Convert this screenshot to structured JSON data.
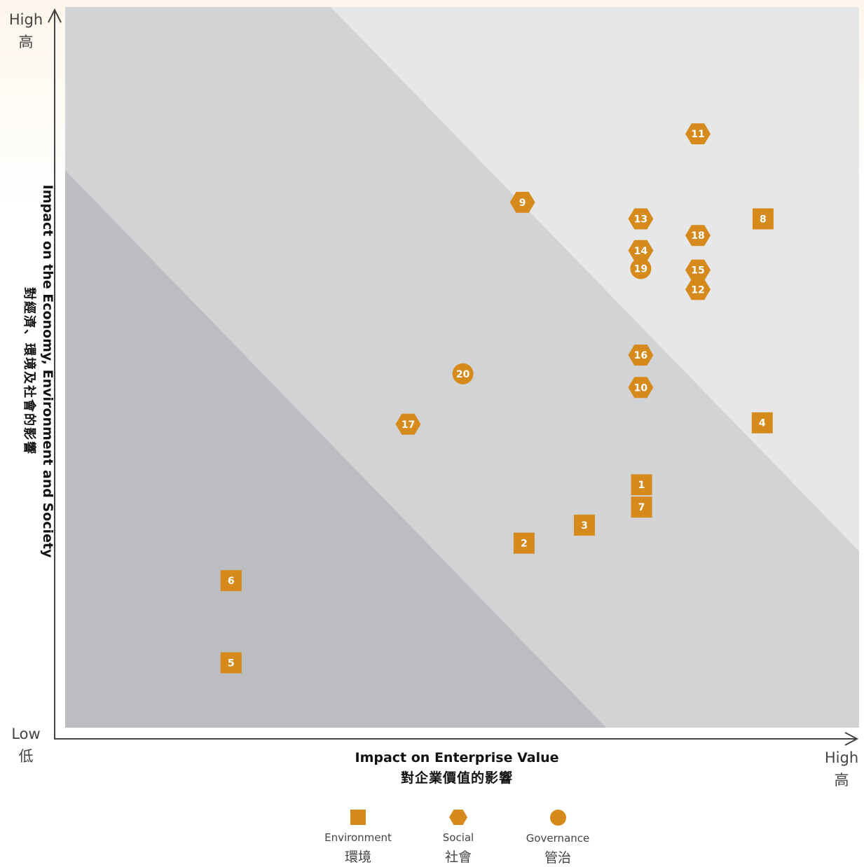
{
  "chart_data": {
    "type": "scatter",
    "xlabel": "Impact on Enterprise Value",
    "xlabel_zh": "對企業價值的影響",
    "ylabel": "Impact on the Economy, Environment and Society",
    "ylabel_zh": "對經濟、環境及社會的影響",
    "x_low": "Low",
    "x_low_zh": "低",
    "x_high": "High",
    "x_high_zh": "高",
    "y_high": "High",
    "y_high_zh": "高",
    "categories": [
      {
        "key": "environment",
        "shape": "square",
        "label": "Environment",
        "label_zh": "環境"
      },
      {
        "key": "social",
        "shape": "hexagon",
        "label": "Social",
        "label_zh": "社會"
      },
      {
        "key": "governance",
        "shape": "circle",
        "label": "Governance",
        "label_zh": "管治"
      }
    ],
    "xlim": [
      0,
      100
    ],
    "ylim": [
      0,
      100
    ],
    "bands": [
      "low",
      "medium",
      "high"
    ],
    "points": [
      {
        "label": "1",
        "category": "environment",
        "x": 72.6,
        "y": 33.7
      },
      {
        "label": "2",
        "category": "environment",
        "x": 57.8,
        "y": 25.6
      },
      {
        "label": "3",
        "category": "environment",
        "x": 65.4,
        "y": 28.1
      },
      {
        "label": "4",
        "category": "environment",
        "x": 87.8,
        "y": 42.3
      },
      {
        "label": "5",
        "category": "environment",
        "x": 20.9,
        "y": 9.0
      },
      {
        "label": "6",
        "category": "environment",
        "x": 20.9,
        "y": 20.4
      },
      {
        "label": "7",
        "category": "environment",
        "x": 72.6,
        "y": 30.6
      },
      {
        "label": "8",
        "category": "environment",
        "x": 87.9,
        "y": 70.6
      },
      {
        "label": "9",
        "category": "social",
        "x": 57.6,
        "y": 72.9
      },
      {
        "label": "10",
        "category": "social",
        "x": 72.5,
        "y": 47.2
      },
      {
        "label": "11",
        "category": "social",
        "x": 79.7,
        "y": 82.4
      },
      {
        "label": "12",
        "category": "social",
        "x": 79.7,
        "y": 60.8
      },
      {
        "label": "13",
        "category": "social",
        "x": 72.5,
        "y": 70.6
      },
      {
        "label": "14",
        "category": "social",
        "x": 72.5,
        "y": 66.2
      },
      {
        "label": "15",
        "category": "social",
        "x": 79.7,
        "y": 63.5
      },
      {
        "label": "16",
        "category": "social",
        "x": 72.5,
        "y": 51.7
      },
      {
        "label": "17",
        "category": "social",
        "x": 43.2,
        "y": 42.1
      },
      {
        "label": "18",
        "category": "social",
        "x": 79.7,
        "y": 68.3
      },
      {
        "label": "19",
        "category": "governance",
        "x": 72.5,
        "y": 63.7
      },
      {
        "label": "20",
        "category": "governance",
        "x": 50.1,
        "y": 49.1
      }
    ],
    "colors": {
      "marker": "#d68a1c",
      "marker_text": "#ffffff",
      "band_low": "#bcbdc0",
      "band_mid": "#d2d3d5",
      "band_high": "#e6e7e8",
      "axis": "#444444"
    },
    "grid": false,
    "legend": "bottom-center"
  }
}
